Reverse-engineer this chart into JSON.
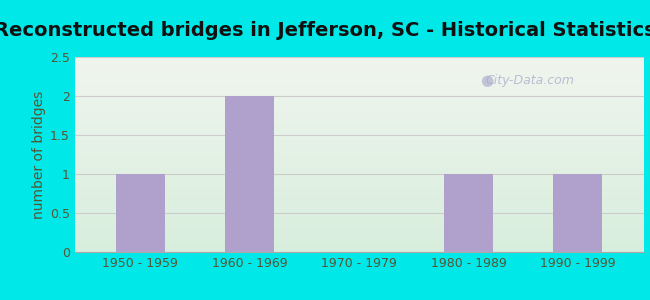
{
  "title": "Reconstructed bridges in Jefferson, SC - Historical Statistics",
  "categories": [
    "1950 - 1959",
    "1960 - 1969",
    "1970 - 1979",
    "1980 - 1989",
    "1990 - 1999"
  ],
  "values": [
    1,
    2,
    0,
    1,
    1
  ],
  "bar_color": "#b0a0cc",
  "ylabel": "number of bridges",
  "ylim": [
    0,
    2.5
  ],
  "yticks": [
    0,
    0.5,
    1,
    1.5,
    2,
    2.5
  ],
  "background_outer": "#00e8e8",
  "background_inner_top": "#f0f5ee",
  "background_inner_bottom": "#d8eedd",
  "title_fontsize": 14,
  "axis_label_fontsize": 10,
  "tick_fontsize": 9,
  "watermark": "City-Data.com",
  "ylabel_color": "#555533",
  "tick_color": "#555533",
  "grid_color": "#cccccc"
}
